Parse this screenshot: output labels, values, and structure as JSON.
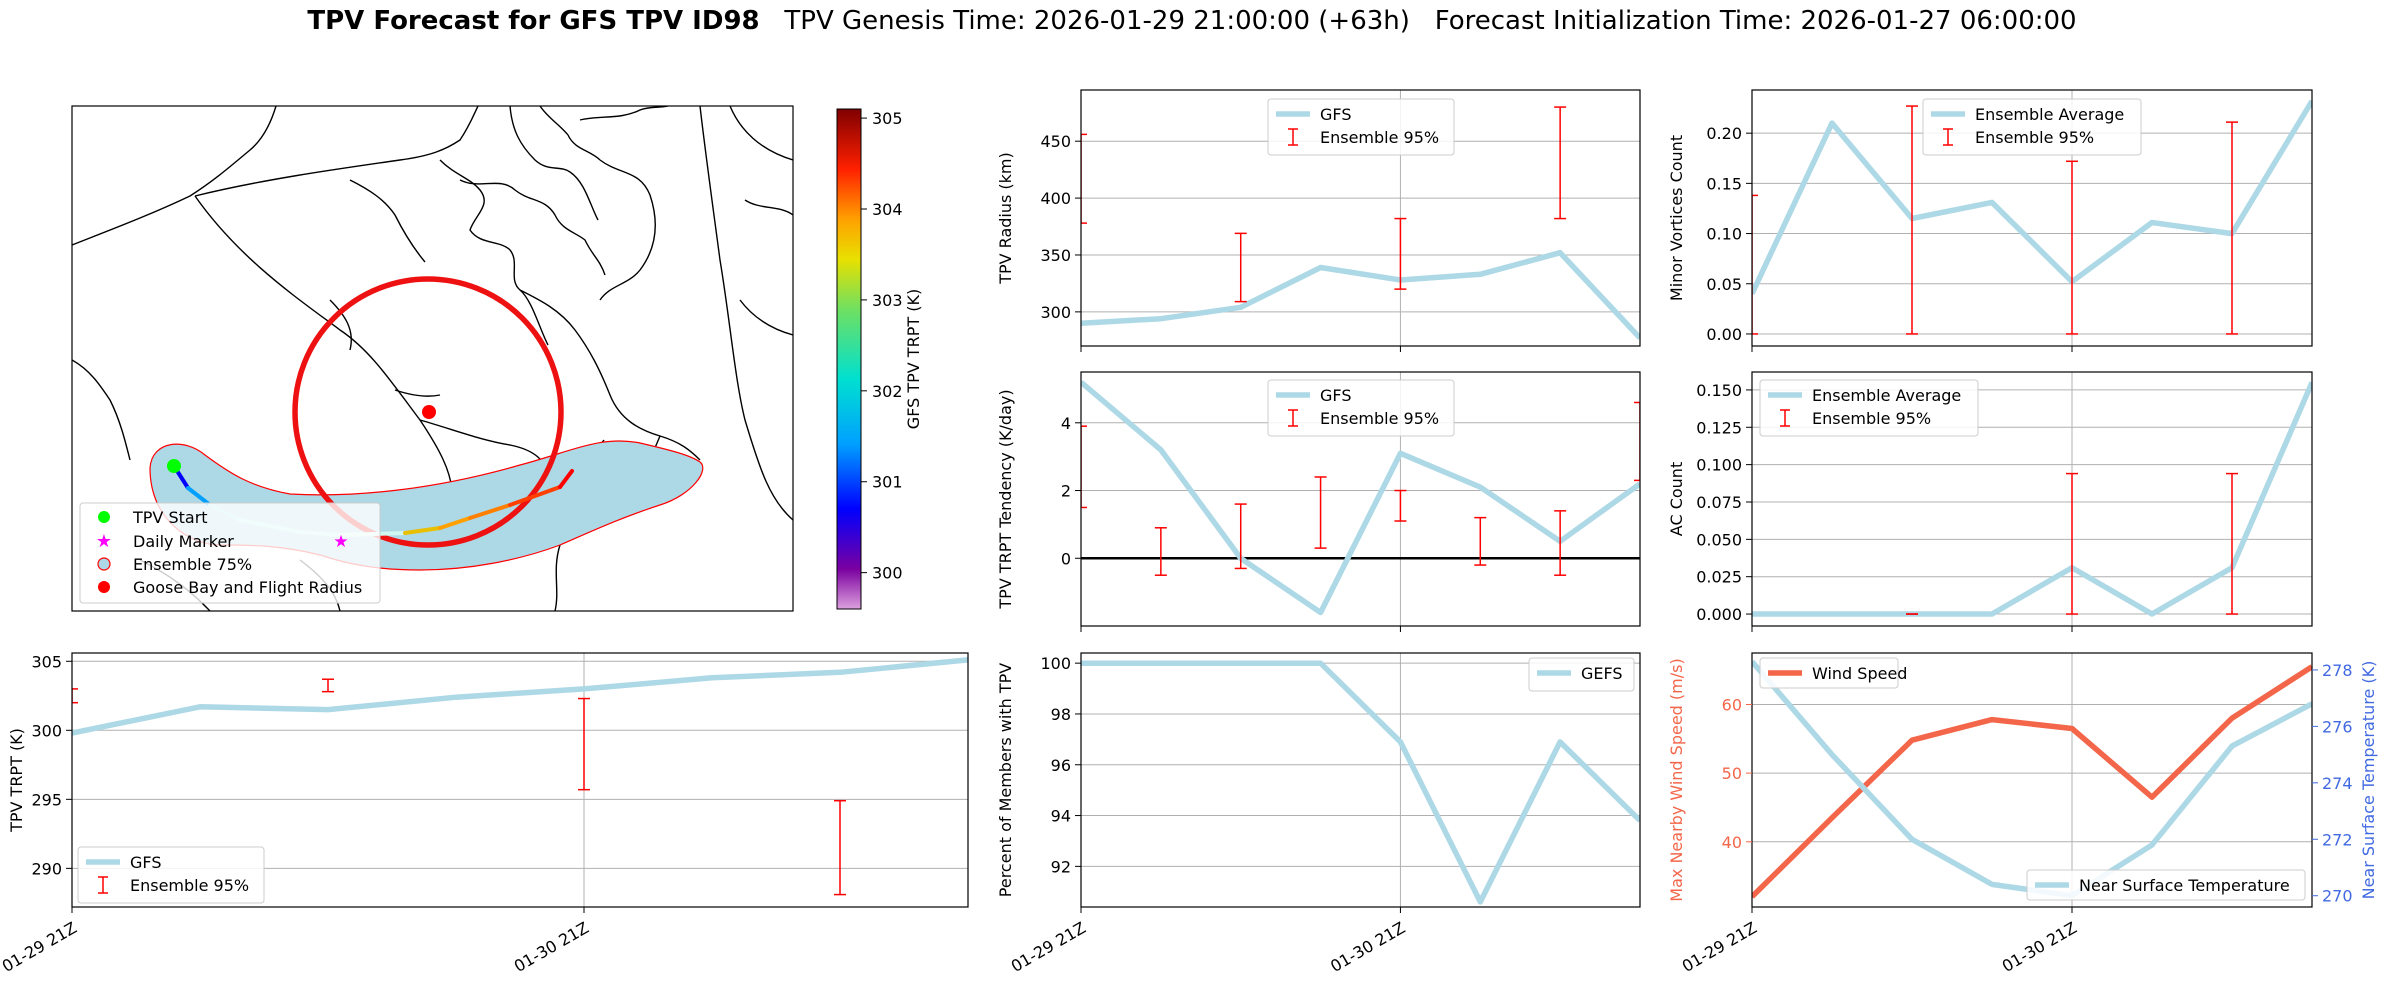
{
  "title": {
    "bold": "TPV Forecast for GFS TPV ID98",
    "rest": "TPV Genesis Time: 2026-01-29 21:00:00 (+63h)   Forecast Initialization Time: 2026-01-27 06:00:00"
  },
  "colors": {
    "gfs_line": "#add8e6",
    "ensemble_err": "#ff0000",
    "wind": "#f4664a",
    "temp_axis": "#4169e1",
    "track_band": "#add8e6",
    "flight_circle": "#ee1111",
    "tpv_start": "#00ff00",
    "daily_marker": "#ff00ff"
  },
  "map": {
    "colorbar_label": "GFS TPV TRPT (K)",
    "colorbar_ticks": [
      300,
      301,
      302,
      303,
      304,
      305
    ],
    "colorbar_range": [
      299.6,
      305.1
    ],
    "legend": [
      "TPV Start",
      "Daily Marker",
      "Ensemble 75%",
      "Goose Bay and Flight Radius"
    ]
  },
  "chart_data": [
    {
      "id": "tpv-radius",
      "type": "line",
      "ylabel": "TPV Radius (km)",
      "x": [
        0,
        0.5,
        1,
        1.5,
        2,
        2.5,
        3,
        3.5
      ],
      "xlim": [
        0,
        3.5
      ],
      "ylim": [
        270,
        495
      ],
      "yticks": [
        300,
        350,
        400,
        450
      ],
      "series": [
        {
          "name": "GFS",
          "values": [
            290,
            294,
            304,
            339,
            328,
            333,
            352,
            277
          ]
        }
      ],
      "errorbars": [
        {
          "name": "Ensemble 95%",
          "x": 0,
          "low": 378,
          "high": 456
        },
        {
          "name": "Ensemble 95%",
          "x": 1,
          "low": 309,
          "high": 369
        },
        {
          "name": "Ensemble 95%",
          "x": 2,
          "low": 320,
          "high": 382
        },
        {
          "name": "Ensemble 95%",
          "x": 3,
          "low": 382,
          "high": 480
        }
      ],
      "legend": [
        "GFS",
        "Ensemble 95%"
      ]
    },
    {
      "id": "minor-vortices",
      "type": "line",
      "ylabel": "Minor Vortices Count",
      "x": [
        0,
        0.5,
        1,
        1.5,
        2,
        2.5,
        3,
        3.5
      ],
      "xlim": [
        0,
        3.5
      ],
      "ylim": [
        -0.012,
        0.243
      ],
      "yticks": [
        0.0,
        0.05,
        0.1,
        0.15,
        0.2
      ],
      "tick_labels": [
        "0.00",
        "0.05",
        "0.10",
        "0.15",
        "0.20"
      ],
      "series": [
        {
          "name": "Ensemble Average",
          "values": [
            0.04,
            0.21,
            0.115,
            0.131,
            0.052,
            0.111,
            0.1,
            0.232
          ]
        }
      ],
      "errorbars": [
        {
          "name": "Ensemble 95%",
          "x": 0,
          "low": 0.0,
          "high": 0.138
        },
        {
          "name": "Ensemble 95%",
          "x": 1,
          "low": 0.0,
          "high": 0.227
        },
        {
          "name": "Ensemble 95%",
          "x": 2,
          "low": 0.0,
          "high": 0.172
        },
        {
          "name": "Ensemble 95%",
          "x": 3,
          "low": 0.0,
          "high": 0.211
        }
      ],
      "legend": [
        "Ensemble Average",
        "Ensemble 95%"
      ]
    },
    {
      "id": "trpt-tendency",
      "type": "line",
      "ylabel": "TPV TRPT Tendency (K/day)",
      "x": [
        0,
        0.5,
        1,
        1.5,
        2,
        2.5,
        3,
        3.5
      ],
      "xlim": [
        0,
        3.5
      ],
      "ylim": [
        -2.0,
        5.5
      ],
      "yticks": [
        0,
        2,
        4
      ],
      "series": [
        {
          "name": "GFS",
          "values": [
            5.2,
            3.2,
            0.0,
            -1.6,
            3.1,
            2.1,
            0.5,
            2.2
          ]
        }
      ],
      "errorbars": [
        {
          "name": "Ensemble 95%",
          "x": 0,
          "low": 1.5,
          "high": 3.9
        },
        {
          "name": "Ensemble 95%",
          "x": 0.5,
          "low": -0.5,
          "high": 0.9
        },
        {
          "name": "Ensemble 95%",
          "x": 1,
          "low": -0.3,
          "high": 1.6
        },
        {
          "name": "Ensemble 95%",
          "x": 1.5,
          "low": 0.3,
          "high": 2.4
        },
        {
          "name": "Ensemble 95%",
          "x": 2,
          "low": 1.1,
          "high": 2.0
        },
        {
          "name": "Ensemble 95%",
          "x": 2.5,
          "low": -0.2,
          "high": 1.2
        },
        {
          "name": "Ensemble 95%",
          "x": 3,
          "low": -0.5,
          "high": 1.4
        },
        {
          "name": "Ensemble 95%",
          "x": 3.5,
          "low": 2.3,
          "high": 4.6
        }
      ],
      "hline": 0,
      "legend": [
        "GFS",
        "Ensemble 95%"
      ]
    },
    {
      "id": "ac-count",
      "type": "line",
      "ylabel": "AC Count",
      "x": [
        0,
        0.5,
        1,
        1.5,
        2,
        2.5,
        3,
        3.5
      ],
      "xlim": [
        0,
        3.5
      ],
      "ylim": [
        -0.008,
        0.162
      ],
      "yticks": [
        0.0,
        0.025,
        0.05,
        0.075,
        0.1,
        0.125,
        0.15
      ],
      "tick_labels": [
        "0.000",
        "0.025",
        "0.050",
        "0.075",
        "0.100",
        "0.125",
        "0.150"
      ],
      "series": [
        {
          "name": "Ensemble Average",
          "values": [
            0,
            0,
            0,
            0,
            0.031,
            0,
            0.031,
            0.155
          ]
        }
      ],
      "errorbars": [
        {
          "name": "Ensemble 95%",
          "x": 1,
          "low": 0.0,
          "high": 0.0
        },
        {
          "name": "Ensemble 95%",
          "x": 2,
          "low": 0.0,
          "high": 0.094
        },
        {
          "name": "Ensemble 95%",
          "x": 3,
          "low": 0.0,
          "high": 0.094
        }
      ],
      "legend": [
        "Ensemble Average",
        "Ensemble 95%"
      ]
    },
    {
      "id": "tpv-trpt",
      "type": "line",
      "ylabel": "TPV TRPT (K)",
      "x": [
        0,
        0.5,
        1,
        1.5,
        2,
        2.5,
        3,
        3.5
      ],
      "xlim": [
        0,
        3.5
      ],
      "ylim": [
        287.2,
        305.6
      ],
      "yticks": [
        290,
        295,
        300,
        305
      ],
      "xticks": [
        0,
        2
      ],
      "xtick_labels": [
        "01-29 21Z",
        "01-30 21Z"
      ],
      "series": [
        {
          "name": "GFS",
          "values": [
            299.8,
            301.7,
            301.5,
            302.4,
            303.0,
            303.8,
            304.2,
            305.1
          ]
        }
      ],
      "errorbars": [
        {
          "name": "Ensemble 95%",
          "x": 0,
          "low": 302.0,
          "high": 303.0
        },
        {
          "name": "Ensemble 95%",
          "x": 1,
          "low": 302.8,
          "high": 303.7
        },
        {
          "name": "Ensemble 95%",
          "x": 2,
          "low": 295.7,
          "high": 302.3
        },
        {
          "name": "Ensemble 95%",
          "x": 3,
          "low": 288.1,
          "high": 294.9
        }
      ],
      "legend": [
        "GFS",
        "Ensemble 95%"
      ]
    },
    {
      "id": "percent-members",
      "type": "line",
      "ylabel": "Percent of Members with TPV",
      "x": [
        0,
        0.5,
        1,
        1.5,
        2,
        2.5,
        3,
        3.5
      ],
      "xlim": [
        0,
        3.5
      ],
      "ylim": [
        90.4,
        100.4
      ],
      "yticks": [
        92,
        94,
        96,
        98,
        100
      ],
      "xticks": [
        0,
        2
      ],
      "xtick_labels": [
        "01-29 21Z",
        "01-30 21Z"
      ],
      "series": [
        {
          "name": "GEFS",
          "values": [
            100,
            100,
            100,
            100,
            96.9,
            90.6,
            96.9,
            93.8
          ]
        }
      ],
      "legend": [
        "GEFS"
      ]
    },
    {
      "id": "wind-temp",
      "type": "line",
      "ylabel": "Max Nearby Wind Speed (m/s)",
      "ylabel_right": "Near Surface Temperature (K)",
      "x": [
        0,
        0.5,
        1,
        1.5,
        2,
        2.5,
        3,
        3.5
      ],
      "xlim": [
        0,
        3.5
      ],
      "ylim": [
        30.5,
        67.5
      ],
      "yticks": [
        40,
        50,
        60
      ],
      "ylim_right": [
        269.6,
        278.6
      ],
      "yticks_right": [
        270,
        272,
        274,
        276,
        278
      ],
      "xticks": [
        0,
        2
      ],
      "xtick_labels": [
        "01-29 21Z",
        "01-30 21Z"
      ],
      "series": [
        {
          "name": "Wind Speed",
          "axis": "left",
          "values": [
            32.0,
            43.5,
            54.8,
            57.8,
            56.5,
            46.5,
            58.0,
            65.5
          ]
        },
        {
          "name": "Near Surface Temperature",
          "axis": "right",
          "values": [
            278.3,
            275.0,
            272.0,
            270.4,
            270.0,
            271.8,
            275.3,
            276.8
          ]
        }
      ],
      "legend": [
        "Wind Speed",
        "Near Surface Temperature"
      ]
    }
  ]
}
